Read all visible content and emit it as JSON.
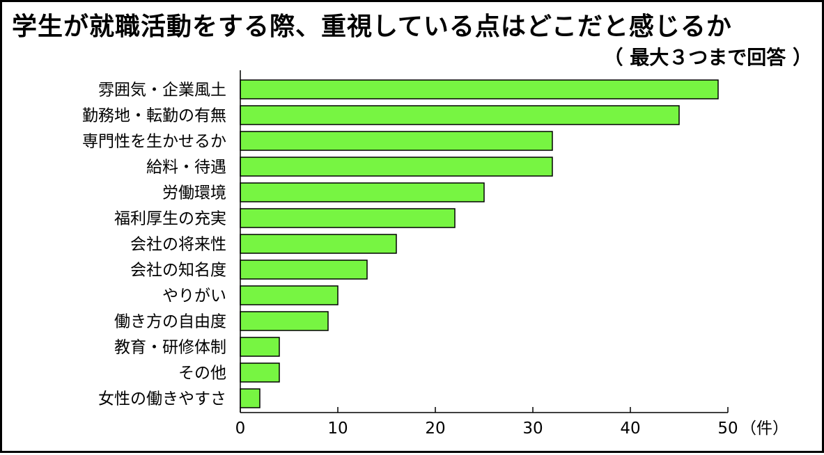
{
  "chart_data": {
    "type": "bar",
    "orientation": "horizontal",
    "title": "学生が就職活動をする際、重視している点はどこだと感じるか",
    "subtitle": "（ 最大３つまで回答 ）",
    "categories": [
      "雰囲気・企業風土",
      "勤務地・転勤の有無",
      "専門性を生かせるか",
      "給料・待遇",
      "労働環境",
      "福利厚生の充実",
      "会社の将来性",
      "会社の知名度",
      "やりがい",
      "働き方の自由度",
      "教育・研修体制",
      "その他",
      "女性の働きやすさ"
    ],
    "values": [
      49,
      45,
      32,
      32,
      25,
      22,
      16,
      13,
      10,
      9,
      4,
      4,
      2
    ],
    "xlim": [
      0,
      50
    ],
    "xticks": [
      "0",
      "10",
      "20",
      "30",
      "40",
      "50"
    ],
    "xunit": "（件）",
    "grid": false,
    "bar_color": "#77f542"
  }
}
